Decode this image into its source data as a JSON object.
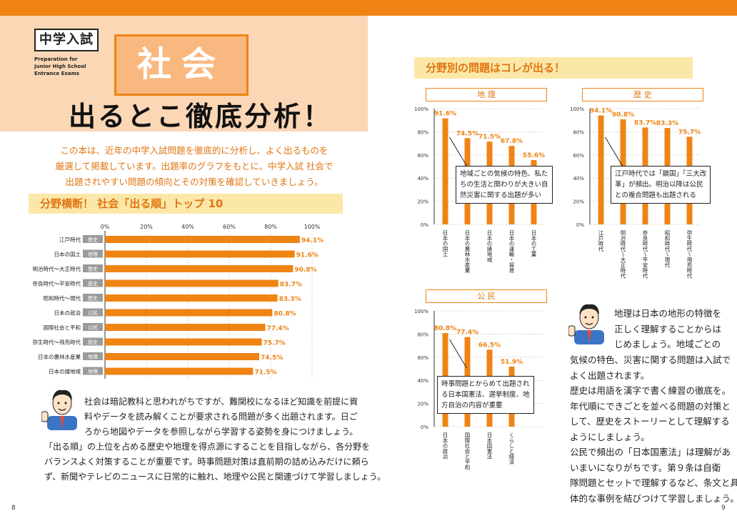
{
  "header": {
    "category": "中学入試",
    "category_en": [
      "Preparation for",
      "Junior High School",
      "Entrance Exams"
    ],
    "subject": "社会",
    "headline": "出るとこ徹底分析！"
  },
  "intro": [
    "この本は、近年の中学入試問題を徹底的に分析し、よく出るものを",
    "厳選して掲載しています。出題率のグラフをもとに、中学入試 社会で",
    "出題されやすい問題の傾向とその対策を確認していきましょう。"
  ],
  "ranking": {
    "title": "分野横断！ 社会「出る順」トップ 10",
    "axis_ticks": [
      "0%",
      "20%",
      "40%",
      "60%",
      "80%",
      "100%"
    ],
    "items": [
      {
        "label": "江戸時代",
        "tag": "歴史",
        "value": "94.1%"
      },
      {
        "label": "日本の国土",
        "tag": "地理",
        "value": "91.6%"
      },
      {
        "label": "明治時代～大正時代",
        "tag": "歴史",
        "value": "90.8%"
      },
      {
        "label": "奈良時代～平安時代",
        "tag": "歴史",
        "value": "83.7%"
      },
      {
        "label": "昭和時代～現代",
        "tag": "歴史",
        "value": "83.3%"
      },
      {
        "label": "日本の政治",
        "tag": "公民",
        "value": "80.8%"
      },
      {
        "label": "国際社会と平和",
        "tag": "公民",
        "value": "77.4%"
      },
      {
        "label": "弥生時代～飛鳥時代",
        "tag": "歴史",
        "value": "75.7%"
      },
      {
        "label": "日本の農林水産業",
        "tag": "地理",
        "value": "74.5%"
      },
      {
        "label": "日本の諸地域",
        "tag": "地理",
        "value": "71.5%"
      }
    ]
  },
  "left_note": [
    "社会は暗記教科と思われがちですが、難関校になるほど知識を前提に資",
    "料やデータを読み解くことが要求される問題が多く出題されます。日ご",
    "ろから地図やデータを参照しながら学習する姿勢を身につけましょう。",
    "「出る順」の上位を占める歴史や地理を得点源にすることを目指しながら、各分野を",
    "バランスよく対策することが重要です。時事問題対策は直前期の詰め込みだけに頼ら",
    "ず、新聞やテレビのニュースに日常的に触れ、地理や公民と関連づけて学習しましょう。"
  ],
  "section_title": "分野別の問題はコレが出る！",
  "y_ticks": [
    "100%",
    "80%",
    "60%",
    "40%",
    "20%",
    "0%"
  ],
  "chart_data": [
    {
      "type": "bar",
      "title": "地 理",
      "categories": [
        "日本の国土",
        "日本の農林水産業",
        "日本の諸地域",
        "日本の運輸・貿易",
        "日本の工業"
      ],
      "values": [
        91.6,
        74.5,
        71.5,
        67.8,
        55.6
      ],
      "labels": [
        "91.6%",
        "74.5%",
        "71.5%",
        "67.8%",
        "55.6%"
      ],
      "ylim": [
        0,
        100
      ],
      "callout": [
        "地域ごとの気候の特色、私た",
        "ちの生活と関わりが大きい自",
        "然災害に関する出題が多い"
      ]
    },
    {
      "type": "bar",
      "title": "歴 史",
      "categories": [
        "江戸時代",
        "明治時代～大正時代",
        "奈良時代～平安時代",
        "昭和時代～現代",
        "弥生時代～飛鳥時代"
      ],
      "values": [
        94.1,
        90.8,
        83.7,
        83.3,
        75.7
      ],
      "labels": [
        "94.1%",
        "90.8%",
        "83.7%",
        "83.3%",
        "75.7%"
      ],
      "ylim": [
        0,
        100
      ],
      "callout": [
        "江戸時代では「鎖国」「三大改",
        "革」が頻出。明治以降は公民",
        "との複合問題も出題される"
      ]
    },
    {
      "type": "bar",
      "title": "公 民",
      "categories": [
        "日本の政治",
        "国際社会と平和",
        "日本国憲法",
        "くらしと経済"
      ],
      "values": [
        80.8,
        77.4,
        66.5,
        51.9
      ],
      "labels": [
        "80.8%",
        "77.4%",
        "66.5%",
        "51.9%"
      ],
      "ylim": [
        0,
        100
      ],
      "callout": [
        "時事問題とからめて出題され",
        "る日本国憲法、選挙制度、地",
        "方自治の内容が重要"
      ]
    }
  ],
  "right_note": [
    "地理は日本の地形の特徴を",
    "正しく理解することからは",
    "じめましょう。地域ごとの",
    "気候の特色、災害に関する問題は入試で",
    "よく出題されます。",
    "歴史は用語を漢字で書く練習の徹底を。",
    "年代順にできごとを並べる問題の対策と",
    "して、歴史をストーリーとして理解する",
    "ようにしましょう。",
    "公民で頻出の「日本国憲法」は理解があ",
    "いまいになりがちです。第９条は自衛",
    "隊問題とセットで理解するなど、条文と具",
    "体的な事例を結びつけて学習しましょう。"
  ],
  "page_numbers": {
    "left": "8",
    "right": "9"
  },
  "colors": {
    "accent": "#ef8414",
    "peach": "#fbd7b5",
    "yellow": "#fbe8a8",
    "text_orange": "#e07512"
  }
}
